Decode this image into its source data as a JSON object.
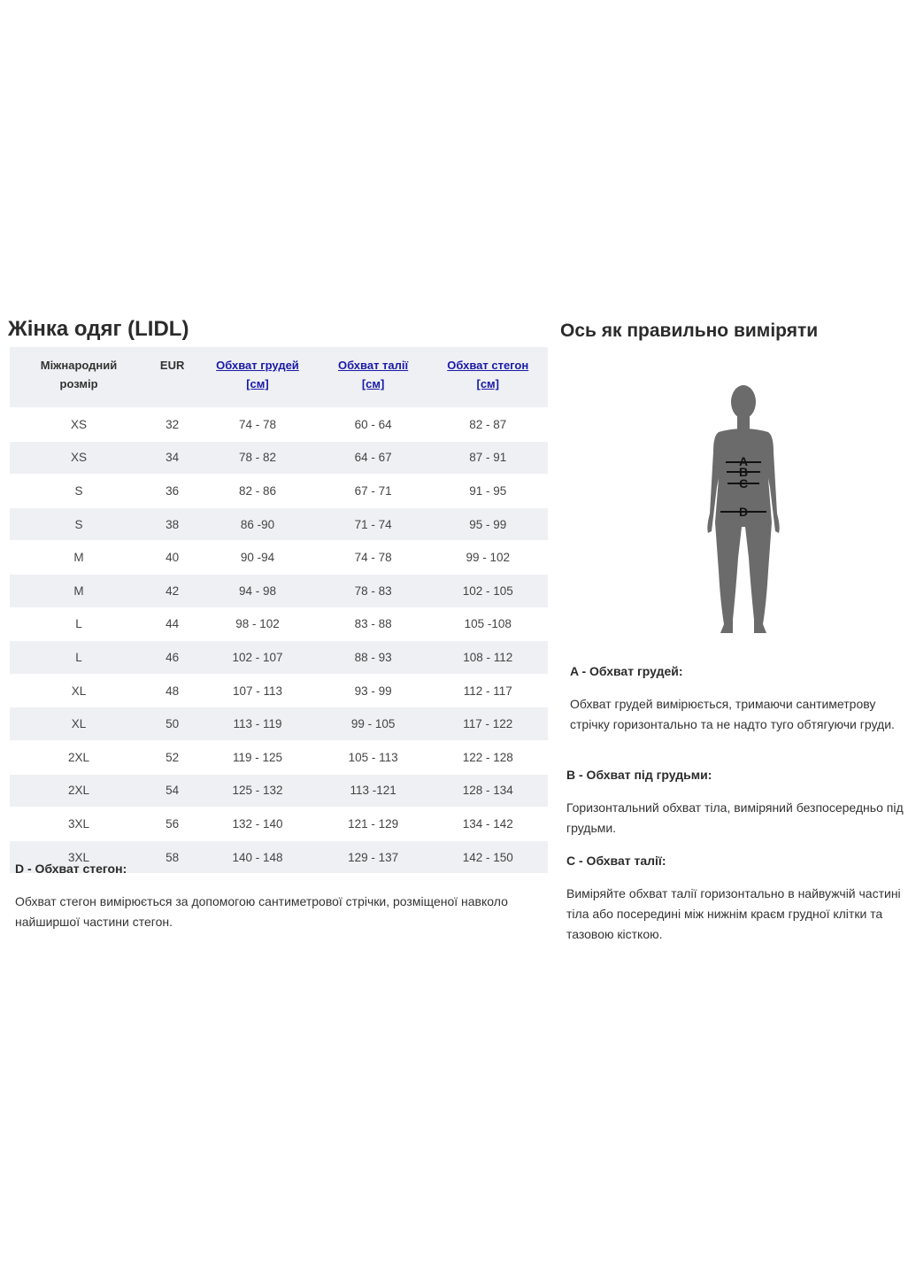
{
  "left": {
    "title": "Жінка одяг (LIDL)",
    "table": {
      "headers": [
        {
          "line1": "Міжнародний",
          "line2": "розмір"
        },
        {
          "line1": "EUR",
          "line2": ""
        },
        {
          "line1": "Обхват грудей",
          "line2": "[см]"
        },
        {
          "line1": "Обхват талії",
          "line2": "[см]"
        },
        {
          "line1": "Обхват стегон",
          "line2": "[см]"
        }
      ],
      "rows": [
        [
          "XS",
          "32",
          "74 - 78",
          "60 - 64",
          "82 - 87"
        ],
        [
          "XS",
          "34",
          "78 - 82",
          "64 - 67",
          "87 - 91"
        ],
        [
          "S",
          "36",
          "82 - 86",
          "67 - 71",
          "91 - 95"
        ],
        [
          "S",
          "38",
          "86 -90",
          "71 - 74",
          "95 - 99"
        ],
        [
          "M",
          "40",
          "90 -94",
          "74 - 78",
          "99 - 102"
        ],
        [
          "M",
          "42",
          "94 - 98",
          "78 - 83",
          "102 - 105"
        ],
        [
          "L",
          "44",
          "98 - 102",
          "83 - 88",
          "105 -108"
        ],
        [
          "L",
          "46",
          "102 - 107",
          "88 - 93",
          "108 - 112"
        ],
        [
          "XL",
          "48",
          "107 - 113",
          "93 - 99",
          "112 - 117"
        ],
        [
          "XL",
          "50",
          "113 - 119",
          "99 - 105",
          "117 - 122"
        ],
        [
          "2XL",
          "52",
          "119 - 125",
          "105 - 113",
          "122 - 128"
        ],
        [
          "2XL",
          "54",
          "125 - 132",
          "113 -121",
          "128 - 134"
        ],
        [
          "3XL",
          "56",
          "132 - 140",
          "121 - 129",
          "134 - 142"
        ],
        [
          "3XL",
          "58",
          "140 - 148",
          "129 - 137",
          "142 - 150"
        ]
      ]
    },
    "d_heading": "D - Обхват стегон:",
    "d_text": "Обхват стегон вимірюється за допомогою сантиметрової стрічки, розміщеної навколо найширшої частини стегон."
  },
  "right": {
    "title": "Ось як правильно виміряти",
    "figure_labels": [
      "A",
      "B",
      "C",
      "D"
    ],
    "a_heading": "A - Обхват грудей:",
    "a_text": "Обхват грудей вимірюється, тримаючи сантиметрову стрічку горизонтально та не надто туго обтягуючи груди.",
    "b_heading": "B - Обхват під грудьми:",
    "b_text": "Горизонтальний обхват тіла, виміряний безпосередньо під грудьми.",
    "c_heading": "C - Обхват талії:",
    "c_text": "Виміряйте обхват талії горизонтально в найвужчій частині тіла або посередині між нижнім краєм грудної клітки та тазовою кісткою."
  },
  "colors": {
    "link": "#1a1aa8",
    "stripe": "#eef0f3",
    "silhouette": "#6b6b6b"
  }
}
